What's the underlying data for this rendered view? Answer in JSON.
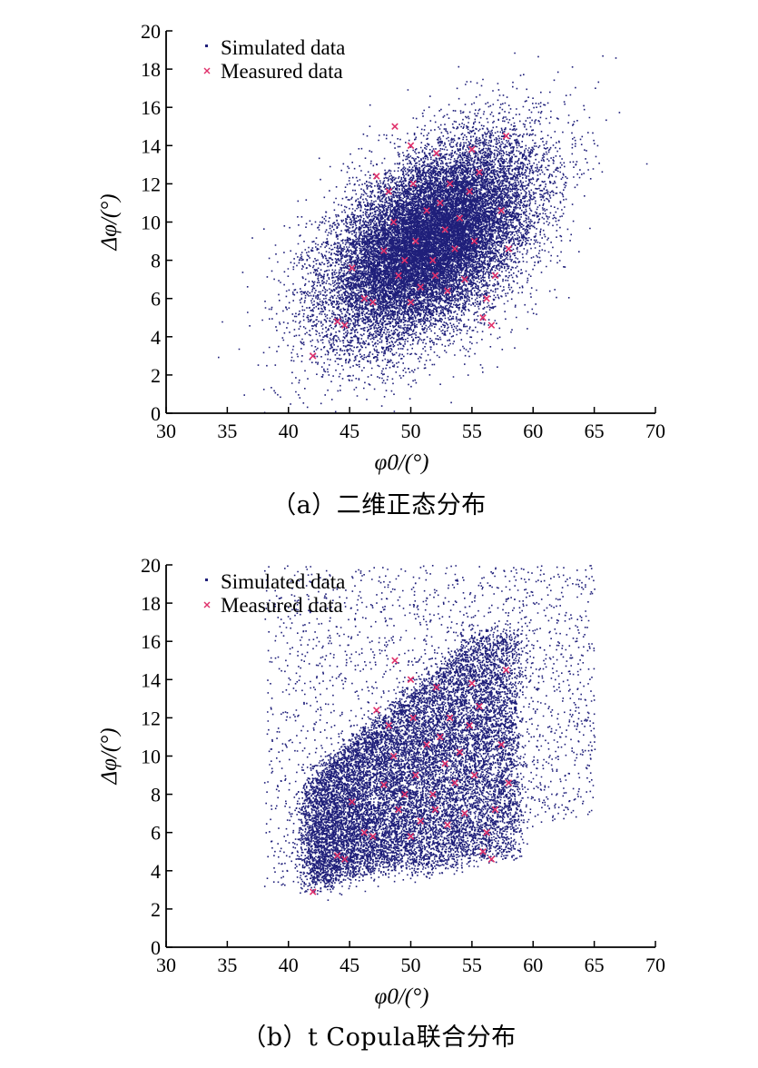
{
  "colors": {
    "simulated": "#1f1f7a",
    "measured": "#e0306a",
    "axis": "#000000"
  },
  "chart_data": [
    {
      "type": "scatter",
      "caption": "（a）二维正态分布",
      "xlabel": "φ0/(°)",
      "ylabel": "Δφ/(°)",
      "xlim": [
        30,
        70
      ],
      "ylim": [
        0,
        20
      ],
      "xticks": [
        30,
        35,
        40,
        45,
        50,
        55,
        60,
        65,
        70
      ],
      "yticks": [
        0,
        2,
        4,
        6,
        8,
        10,
        12,
        14,
        16,
        18,
        20
      ],
      "legend": {
        "placement": "top-left",
        "entries": [
          "Simulated data",
          "Measured data"
        ]
      },
      "series": [
        {
          "name": "Simulated data",
          "marker": "dot",
          "distribution": "bivariate-normal",
          "n_points": 20000,
          "mean": [
            51.5,
            9.0
          ],
          "std": [
            4.2,
            2.6
          ],
          "correlation": 0.5
        },
        {
          "name": "Measured data",
          "marker": "x",
          "points": [
            [
              42.0,
              3.0
            ],
            [
              44.0,
              4.8
            ],
            [
              44.6,
              4.6
            ],
            [
              45.2,
              7.6
            ],
            [
              46.2,
              6.0
            ],
            [
              46.9,
              5.8
            ],
            [
              47.8,
              8.5
            ],
            [
              48.2,
              11.6
            ],
            [
              48.7,
              15.0
            ],
            [
              49.0,
              7.2
            ],
            [
              49.5,
              8.0
            ],
            [
              50.0,
              5.8
            ],
            [
              50.0,
              14.0
            ],
            [
              50.4,
              9.0
            ],
            [
              50.8,
              6.6
            ],
            [
              51.3,
              10.6
            ],
            [
              51.8,
              8.0
            ],
            [
              52.1,
              13.6
            ],
            [
              52.4,
              11.0
            ],
            [
              52.8,
              9.6
            ],
            [
              53.2,
              12.0
            ],
            [
              53.6,
              8.6
            ],
            [
              54.0,
              10.2
            ],
            [
              54.4,
              7.0
            ],
            [
              54.8,
              11.6
            ],
            [
              55.2,
              9.0
            ],
            [
              55.6,
              12.6
            ],
            [
              55.9,
              5.0
            ],
            [
              56.2,
              6.0
            ],
            [
              56.6,
              4.6
            ],
            [
              56.9,
              7.2
            ],
            [
              57.4,
              10.6
            ],
            [
              57.8,
              14.5
            ],
            [
              58.0,
              8.6
            ],
            [
              52.0,
              7.2
            ],
            [
              53.0,
              6.4
            ],
            [
              48.6,
              10.0
            ],
            [
              47.2,
              12.4
            ],
            [
              55.0,
              13.8
            ],
            [
              50.2,
              12.0
            ]
          ]
        }
      ]
    },
    {
      "type": "scatter",
      "caption": "（b）t Copula联合分布",
      "xlabel": "φ0/(°)",
      "ylabel": "Δφ/(°)",
      "xlim": [
        30,
        70
      ],
      "ylim": [
        0,
        20
      ],
      "xticks": [
        30,
        35,
        40,
        45,
        50,
        55,
        60,
        65,
        70
      ],
      "yticks": [
        0,
        2,
        4,
        6,
        8,
        10,
        12,
        14,
        16,
        18,
        20
      ],
      "legend": {
        "placement": "top-left",
        "entries": [
          "Simulated data",
          "Measured data"
        ]
      },
      "series": [
        {
          "name": "Simulated data",
          "marker": "dot",
          "distribution": "t-copula",
          "n_points": 16000,
          "x_range": [
            38,
            65
          ],
          "y_range": [
            2.6,
            20
          ],
          "x_core": [
            41.5,
            58.5
          ],
          "y_core": [
            3.2,
            16.5
          ],
          "correlation": 0.55
        },
        {
          "name": "Measured data",
          "marker": "x",
          "points": [
            [
              42.0,
              2.9
            ],
            [
              44.0,
              4.8
            ],
            [
              44.6,
              4.6
            ],
            [
              45.2,
              7.6
            ],
            [
              46.2,
              6.0
            ],
            [
              46.9,
              5.8
            ],
            [
              47.8,
              8.5
            ],
            [
              48.2,
              11.6
            ],
            [
              48.7,
              15.0
            ],
            [
              49.0,
              7.2
            ],
            [
              49.5,
              8.0
            ],
            [
              50.0,
              5.8
            ],
            [
              50.0,
              14.0
            ],
            [
              50.4,
              9.0
            ],
            [
              50.8,
              6.6
            ],
            [
              51.3,
              10.6
            ],
            [
              51.8,
              8.0
            ],
            [
              52.1,
              13.6
            ],
            [
              52.4,
              11.0
            ],
            [
              52.8,
              9.6
            ],
            [
              53.2,
              12.0
            ],
            [
              53.6,
              8.6
            ],
            [
              54.0,
              10.2
            ],
            [
              54.4,
              7.0
            ],
            [
              54.8,
              11.6
            ],
            [
              55.2,
              9.0
            ],
            [
              55.6,
              12.6
            ],
            [
              55.9,
              5.0
            ],
            [
              56.2,
              6.0
            ],
            [
              56.6,
              4.6
            ],
            [
              56.9,
              7.2
            ],
            [
              57.4,
              10.6
            ],
            [
              57.8,
              14.5
            ],
            [
              58.0,
              8.6
            ],
            [
              52.0,
              7.2
            ],
            [
              53.0,
              6.4
            ],
            [
              48.6,
              10.0
            ],
            [
              47.2,
              12.4
            ],
            [
              55.0,
              13.8
            ],
            [
              50.2,
              12.0
            ]
          ]
        }
      ]
    }
  ]
}
